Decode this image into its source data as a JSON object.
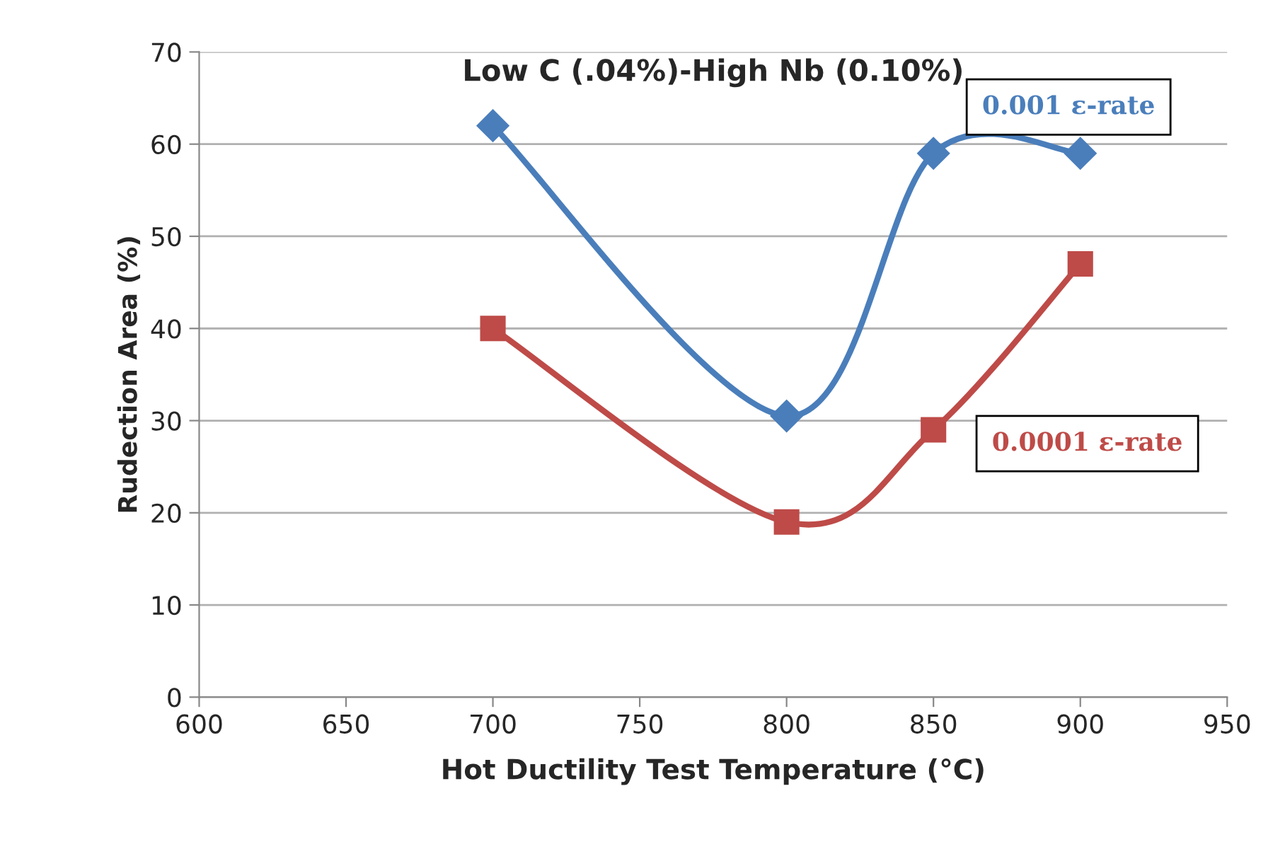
{
  "chart_data": {
    "type": "line",
    "title": "Low C (.04%)-High Nb (0.10%)",
    "xlabel": "Hot Ductility Test Temperature (°C)",
    "ylabel": "Rudection Area (%)",
    "x": [
      700,
      800,
      850,
      900
    ],
    "series": [
      {
        "name": "0.001 ε-rate",
        "color": "#4a7ebb",
        "values": [
          62,
          30.5,
          59,
          59
        ],
        "marker": "diamond"
      },
      {
        "name": "0.0001 ε-rate",
        "color": "#be4b48",
        "values": [
          40,
          19,
          29,
          47
        ],
        "marker": "square"
      }
    ],
    "xlim": [
      600,
      950
    ],
    "xticks": [
      600,
      650,
      700,
      750,
      800,
      850,
      900,
      950
    ],
    "ylim": [
      0,
      70
    ],
    "yticks": [
      0,
      10,
      20,
      30,
      40,
      50,
      60,
      70
    ],
    "grid": "y",
    "legend": false,
    "line_style": "solid"
  }
}
